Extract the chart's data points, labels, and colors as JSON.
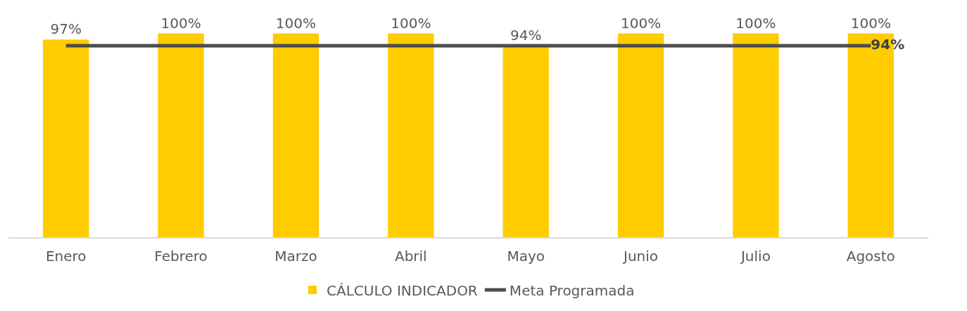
{
  "chart_data": {
    "type": "bar",
    "categories": [
      "Enero",
      "Febrero",
      "Marzo",
      "Abril",
      "Mayo",
      "Junio",
      "Julio",
      "Agosto"
    ],
    "series": [
      {
        "name": "CÁLCULO INDICADOR",
        "color": "#ffcc00",
        "values": [
          97,
          100,
          100,
          100,
          94,
          100,
          100,
          100
        ],
        "value_labels": [
          "97%",
          "100%",
          "100%",
          "100%",
          "94%",
          "100%",
          "100%",
          "100%"
        ]
      },
      {
        "name": "Meta Programada",
        "type": "line",
        "color": "#4d4d4d",
        "values": [
          94,
          94,
          94,
          94,
          94,
          94,
          94,
          94
        ],
        "value_labels": [
          null,
          null,
          null,
          null,
          null,
          null,
          null,
          "94%"
        ]
      }
    ],
    "legend": "bottom"
  }
}
